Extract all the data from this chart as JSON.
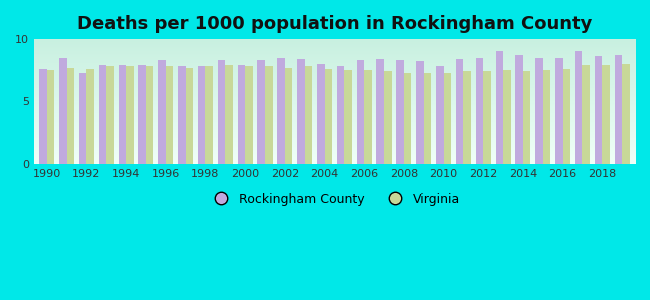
{
  "title": "Deaths per 1000 population in Rockingham County",
  "background_color": "#00e8e8",
  "years": [
    1990,
    1991,
    1992,
    1993,
    1994,
    1995,
    1996,
    1997,
    1998,
    1999,
    2000,
    2001,
    2002,
    2003,
    2004,
    2005,
    2006,
    2007,
    2008,
    2009,
    2010,
    2011,
    2012,
    2013,
    2014,
    2015,
    2016,
    2017,
    2018,
    2019
  ],
  "rockingham": [
    7.6,
    8.5,
    7.3,
    7.9,
    7.9,
    7.9,
    8.3,
    7.8,
    7.8,
    8.3,
    7.9,
    8.3,
    8.5,
    8.4,
    8.0,
    7.8,
    8.3,
    8.4,
    8.3,
    8.2,
    7.8,
    8.4,
    8.5,
    9.0,
    8.7,
    8.5,
    8.5,
    9.0,
    8.6,
    8.7
  ],
  "virginia": [
    7.5,
    7.7,
    7.6,
    7.8,
    7.8,
    7.8,
    7.8,
    7.7,
    7.8,
    7.9,
    7.8,
    7.8,
    7.7,
    7.8,
    7.6,
    7.5,
    7.5,
    7.4,
    7.3,
    7.3,
    7.3,
    7.4,
    7.4,
    7.5,
    7.4,
    7.5,
    7.6,
    7.9,
    7.9,
    8.0
  ],
  "rockingham_color": "#c0aade",
  "virginia_color": "#c8d898",
  "plot_bg_top": "#f0fff8",
  "plot_bg_bottom": "#c8f0e0",
  "ylim": [
    0,
    10
  ],
  "yticks": [
    0,
    5,
    10
  ],
  "bar_width": 0.38,
  "title_fontsize": 13,
  "legend_rockingham": "Rockingham County",
  "legend_virginia": "Virginia"
}
